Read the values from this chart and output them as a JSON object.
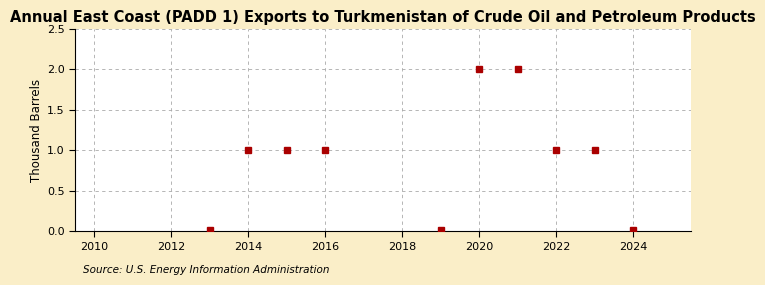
{
  "title": "Annual East Coast (PADD 1) Exports to Turkmenistan of Crude Oil and Petroleum Products",
  "ylabel": "Thousand Barrels",
  "source": "Source: U.S. Energy Information Administration",
  "xlim": [
    2009.5,
    2025.5
  ],
  "ylim": [
    0,
    2.5
  ],
  "xticks": [
    2010,
    2012,
    2014,
    2016,
    2018,
    2020,
    2022,
    2024
  ],
  "yticks": [
    0.0,
    0.5,
    1.0,
    1.5,
    2.0,
    2.5
  ],
  "data_x": [
    2013,
    2014,
    2015,
    2016,
    2019,
    2020,
    2021,
    2022,
    2023,
    2024
  ],
  "data_y": [
    0.02,
    1.0,
    1.0,
    1.0,
    0.02,
    2.0,
    2.0,
    1.0,
    1.0,
    0.02
  ],
  "marker_color": "#aa0000",
  "marker": "s",
  "marker_size": 4,
  "grid_color": "#aaaaaa",
  "bg_color": "#faeec8",
  "plot_bg_color": "#ffffff",
  "title_fontsize": 10.5,
  "label_fontsize": 8.5,
  "tick_fontsize": 8,
  "source_fontsize": 7.5
}
